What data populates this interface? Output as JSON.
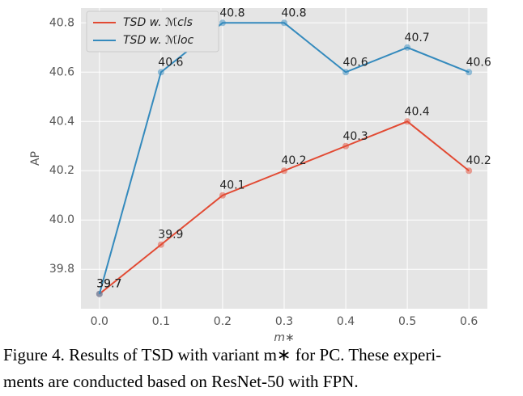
{
  "chart_data": {
    "type": "line",
    "x": [
      0,
      0.1,
      0.2,
      0.3,
      0.4,
      0.5,
      0.6
    ],
    "series": [
      {
        "name": "TSD w. ℳcls",
        "color": "#e24a33",
        "values": [
          39.7,
          39.9,
          40.1,
          40.2,
          40.3,
          40.4,
          40.2
        ]
      },
      {
        "name": "TSD w. ℳloc",
        "color": "#348abd",
        "values": [
          39.7,
          40.6,
          40.8,
          40.8,
          40.6,
          40.7,
          40.6
        ]
      }
    ],
    "xlim": [
      -0.03,
      0.63
    ],
    "xticks": [
      {
        "value": 0,
        "label": "0.0"
      },
      0.1,
      0.2,
      0.3,
      0.4,
      0.5,
      0.6
    ],
    "ylim": [
      39.64,
      40.86
    ],
    "yticks": [
      39.8,
      {
        "value": 40,
        "label": "40.0"
      },
      40.2,
      40.4,
      40.6,
      40.8
    ],
    "xlabel": "m∗",
    "ylabel": "AP",
    "grid": true,
    "legend": "upper-left",
    "caption": [
      "Figure 4. Results of TSD with variant m∗ for PC. These experi-",
      "ments are conducted based on ResNet-50 with FPN."
    ]
  }
}
